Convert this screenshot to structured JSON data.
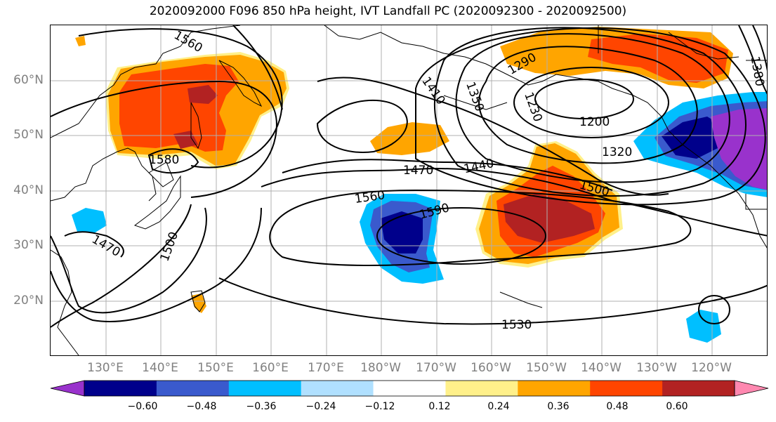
{
  "title": "2020092000 F096 850 hPa height, IVT Landfall PC (2020092300 - 2020092500)",
  "map": {
    "lat_labels": [
      "60°N",
      "50°N",
      "40°N",
      "30°N",
      "20°N"
    ],
    "lon_labels": [
      "130°E",
      "140°E",
      "150°E",
      "160°E",
      "170°E",
      "180°W",
      "170°W",
      "160°W",
      "150°W",
      "140°W",
      "130°W",
      "120°W"
    ],
    "contour_labels": [
      "1560",
      "1580",
      "1470",
      "1500",
      "1410",
      "1350",
      "1290",
      "1230",
      "1200",
      "1320",
      "1440",
      "1470",
      "1500",
      "1560",
      "1590",
      "1530",
      "1380"
    ]
  },
  "colorbar": {
    "ticks": [
      "−0.60",
      "−0.48",
      "−0.36",
      "−0.24",
      "−0.12",
      "0.12",
      "0.24",
      "0.36",
      "0.48",
      "0.60"
    ],
    "colors": [
      "#9932cc",
      "#00008b",
      "#3a5acd",
      "#00bfff",
      "#b0e0ff",
      "#ffffff",
      "#fff08a",
      "#ffa500",
      "#ff4500",
      "#b22222",
      "#ff88b0"
    ]
  },
  "colors": {
    "land_outline": "#000000",
    "grid": "#b0b0b0",
    "axis_label": "#808080"
  }
}
